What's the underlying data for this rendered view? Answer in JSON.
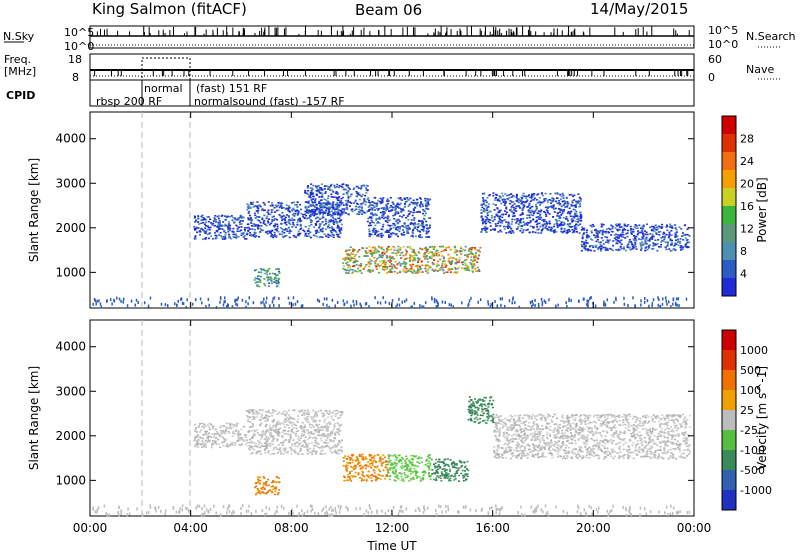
{
  "header": {
    "station": "King Salmon (fitACF)",
    "beam": "Beam 06",
    "date": "14/May/2015"
  },
  "top_panels": {
    "nsky_label": "N.Sky",
    "nsky_ticks": [
      "10^5",
      "10^0"
    ],
    "nsearch_label": "N.Search",
    "nsearch_ticks": [
      "10^5",
      "10^0"
    ],
    "freq_label": "Freq.",
    "freq_unit": "[MHz]",
    "freq_ticks": [
      "18",
      "8"
    ],
    "nave_label": "Nave",
    "nave_ticks": [
      "60",
      "0"
    ],
    "cpid_label": "CPID",
    "cpid_segments": [
      {
        "text": "rbsp 200 RF"
      },
      {
        "text": "normal"
      },
      {
        "text": "(fast) 151 RF"
      },
      {
        "text": "normalsound (fast) -157 RF"
      }
    ]
  },
  "chart_data": [
    {
      "type": "heatmap",
      "title": "",
      "xlabel": "Time UT",
      "ylabel": "Slant Range [km]",
      "xlim": [
        0,
        24
      ],
      "ylim": [
        200,
        4600
      ],
      "x_ticks": [
        "00:00",
        "04:00",
        "08:00",
        "12:00",
        "16:00",
        "20:00",
        "00:00"
      ],
      "y_ticks": [
        "1000",
        "2000",
        "3000",
        "4000"
      ],
      "colorbar": {
        "label": "Power [dB]",
        "ticks": [
          "4",
          "8",
          "12",
          "16",
          "20",
          "24",
          "28"
        ],
        "colors": [
          "#1e2bd6",
          "#2b5cc4",
          "#4c8fb0",
          "#5a9a7a",
          "#3bb53b",
          "#c8d020",
          "#f5a000",
          "#f07010",
          "#e03000",
          "#d00000"
        ]
      },
      "scatter_regions": [
        {
          "t0": 4.1,
          "t1": 6.2,
          "r0": 1750,
          "r1": 2300,
          "level": "weak"
        },
        {
          "t0": 6.2,
          "t1": 10.0,
          "r0": 1800,
          "r1": 2600,
          "level": "weak"
        },
        {
          "t0": 6.5,
          "t1": 7.5,
          "r0": 700,
          "r1": 1100,
          "level": "moderate"
        },
        {
          "t0": 8.5,
          "t1": 11.0,
          "r0": 2300,
          "r1": 3000,
          "level": "weak"
        },
        {
          "t0": 10.0,
          "t1": 15.5,
          "r0": 1000,
          "r1": 1600,
          "level": "strong"
        },
        {
          "t0": 11.0,
          "t1": 13.5,
          "r0": 1800,
          "r1": 2700,
          "level": "weak"
        },
        {
          "t0": 15.5,
          "t1": 19.5,
          "r0": 1900,
          "r1": 2800,
          "level": "weak"
        },
        {
          "t0": 19.5,
          "t1": 23.8,
          "r0": 1500,
          "r1": 2100,
          "level": "weak"
        }
      ]
    },
    {
      "type": "heatmap",
      "title": "",
      "xlabel": "Time UT",
      "ylabel": "Slant Range [km]",
      "xlim": [
        0,
        24
      ],
      "ylim": [
        200,
        4600
      ],
      "x_ticks": [
        "00:00",
        "04:00",
        "08:00",
        "12:00",
        "16:00",
        "20:00",
        "00:00"
      ],
      "y_ticks": [
        "1000",
        "2000",
        "3000",
        "4000"
      ],
      "colorbar": {
        "label": "Velocity [m s^-1]",
        "ticks": [
          "1000",
          "500",
          "100",
          "25",
          "-25",
          "-100",
          "-500",
          "-1000"
        ],
        "colors": [
          "#2030c0",
          "#3060b0",
          "#3a8a5a",
          "#55c040",
          "#bcbcbc",
          "#f0a000",
          "#f07000",
          "#e03000",
          "#cc0000"
        ]
      },
      "scatter_regions": [
        {
          "t0": 4.1,
          "t1": 6.2,
          "r0": 1750,
          "r1": 2300,
          "level": "gray"
        },
        {
          "t0": 6.2,
          "t1": 10.0,
          "r0": 1600,
          "r1": 2600,
          "level": "gray"
        },
        {
          "t0": 6.5,
          "t1": 7.5,
          "r0": 700,
          "r1": 1100,
          "level": "orange"
        },
        {
          "t0": 10.0,
          "t1": 11.8,
          "r0": 1000,
          "r1": 1600,
          "level": "orange"
        },
        {
          "t0": 11.8,
          "t1": 13.5,
          "r0": 1000,
          "r1": 1600,
          "level": "green"
        },
        {
          "t0": 13.5,
          "t1": 15.0,
          "r0": 1000,
          "r1": 1500,
          "level": "darkgreen"
        },
        {
          "t0": 15.0,
          "t1": 16.0,
          "r0": 2300,
          "r1": 2900,
          "level": "darkgreen"
        },
        {
          "t0": 16.0,
          "t1": 23.8,
          "r0": 1500,
          "r1": 2500,
          "level": "gray"
        }
      ]
    }
  ]
}
